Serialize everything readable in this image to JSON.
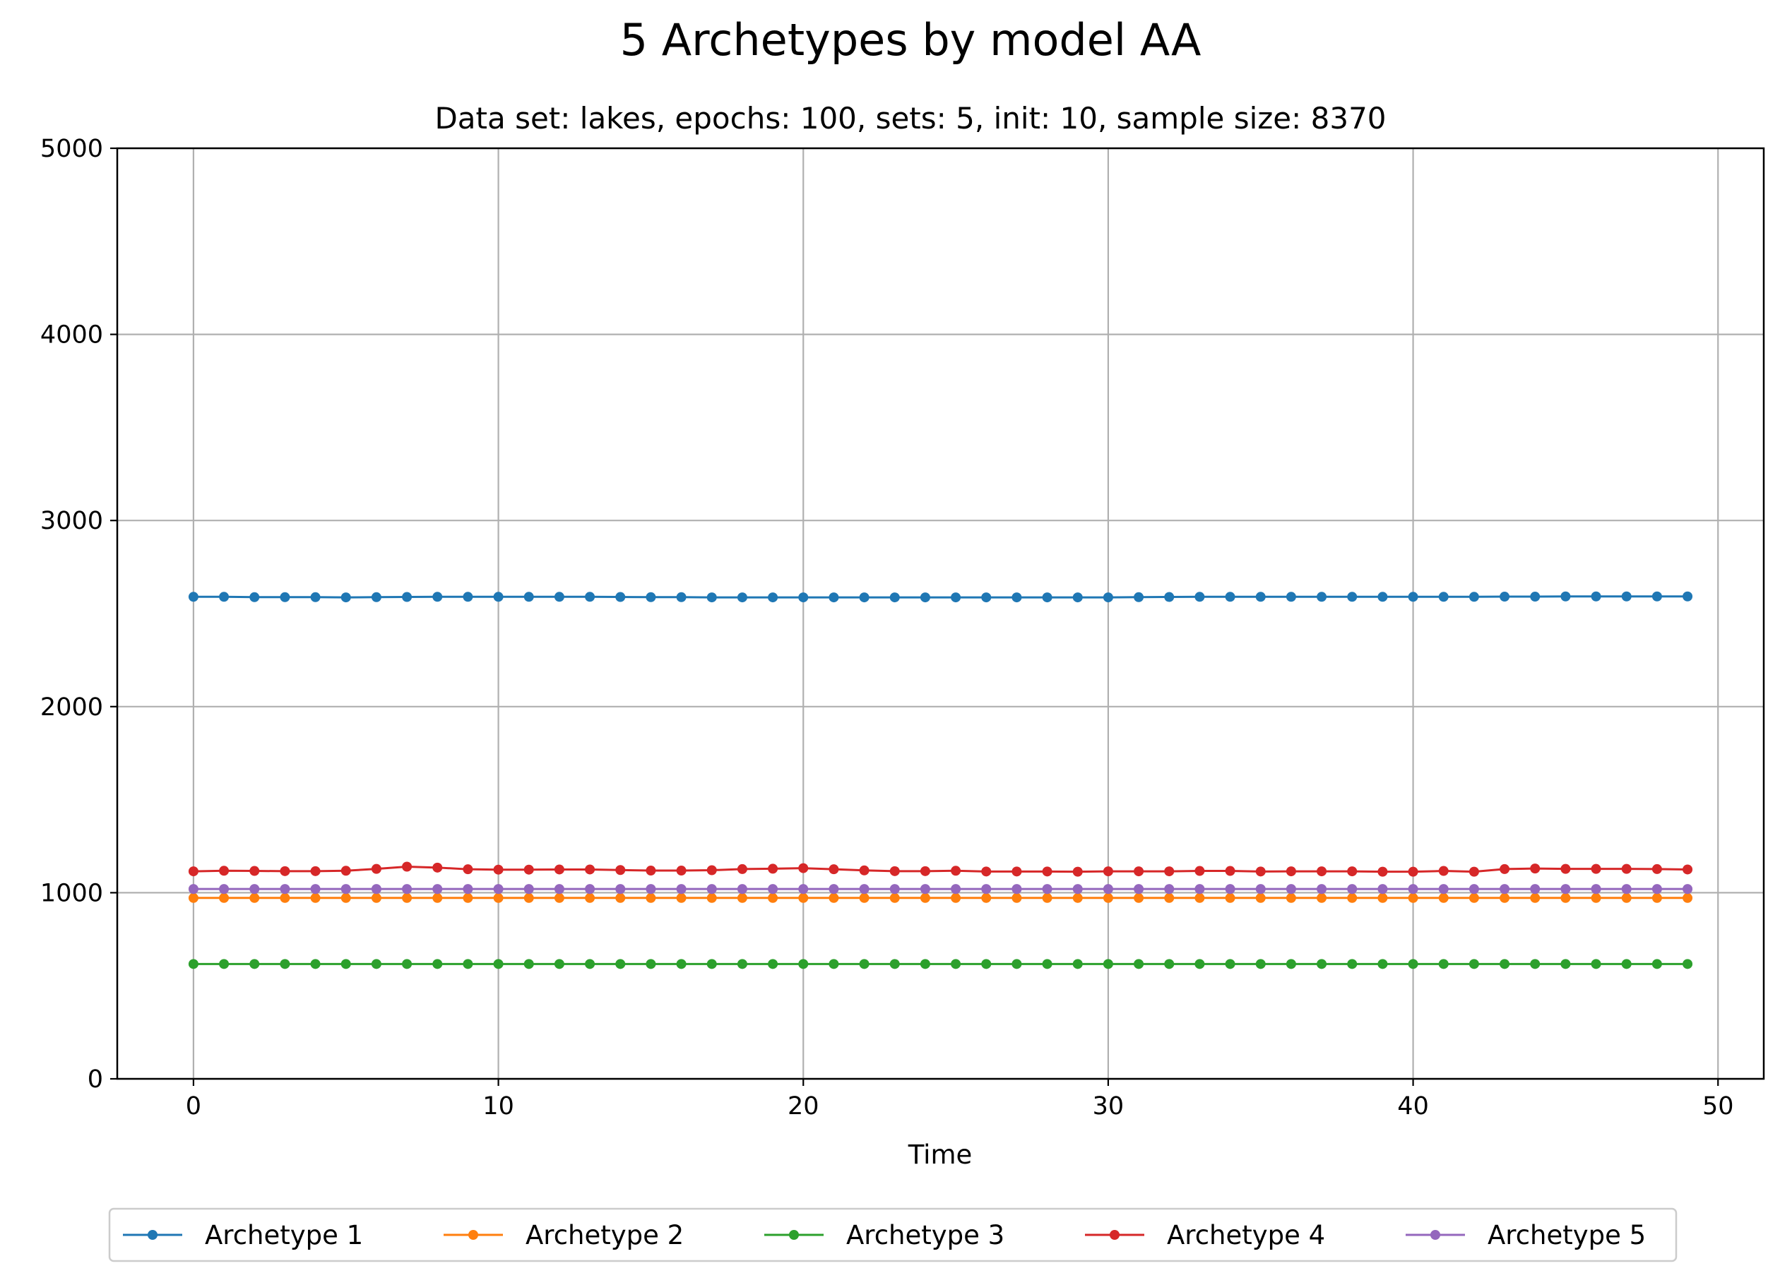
{
  "chart_data": {
    "type": "line",
    "title": "5 Archetypes by model AA",
    "subtitle": "Data set: lakes, epochs: 100, sets: 5, init: 10, sample size: 8370",
    "xlabel": "Time",
    "ylabel": "",
    "xlim": [
      -2.5,
      51.5
    ],
    "ylim": [
      0,
      5000
    ],
    "xticks": [
      0,
      10,
      20,
      30,
      40,
      50
    ],
    "yticks": [
      0,
      1000,
      2000,
      3000,
      4000,
      5000
    ],
    "grid": true,
    "legend_position": "bottom-center",
    "x": [
      0,
      1,
      2,
      3,
      4,
      5,
      6,
      7,
      8,
      9,
      10,
      11,
      12,
      13,
      14,
      15,
      16,
      17,
      18,
      19,
      20,
      21,
      22,
      23,
      24,
      25,
      26,
      27,
      28,
      29,
      30,
      31,
      32,
      33,
      34,
      35,
      36,
      37,
      38,
      39,
      40,
      41,
      42,
      43,
      44,
      45,
      46,
      47,
      48,
      49
    ],
    "series": [
      {
        "name": "Archetype 1",
        "color": "#1f77b4",
        "values": [
          2590,
          2590,
          2588,
          2588,
          2588,
          2587,
          2588,
          2589,
          2590,
          2590,
          2590,
          2590,
          2590,
          2590,
          2589,
          2588,
          2588,
          2587,
          2587,
          2587,
          2587,
          2587,
          2587,
          2587,
          2587,
          2587,
          2587,
          2587,
          2587,
          2587,
          2587,
          2588,
          2589,
          2590,
          2590,
          2590,
          2590,
          2590,
          2590,
          2590,
          2590,
          2590,
          2590,
          2591,
          2591,
          2592,
          2592,
          2592,
          2592,
          2592
        ]
      },
      {
        "name": "Archetype 2",
        "color": "#ff7f0e",
        "values": [
          972,
          972,
          972,
          972,
          972,
          972,
          972,
          972,
          972,
          972,
          972,
          972,
          972,
          972,
          972,
          972,
          972,
          972,
          972,
          972,
          972,
          972,
          972,
          972,
          972,
          972,
          972,
          972,
          972,
          972,
          972,
          972,
          972,
          972,
          972,
          972,
          972,
          972,
          972,
          972,
          972,
          972,
          972,
          972,
          972,
          972,
          972,
          972,
          972,
          972
        ]
      },
      {
        "name": "Archetype 3",
        "color": "#2ca02c",
        "values": [
          617,
          617,
          617,
          617,
          617,
          617,
          617,
          617,
          617,
          617,
          617,
          617,
          617,
          617,
          617,
          617,
          617,
          617,
          617,
          617,
          617,
          617,
          617,
          617,
          617,
          617,
          617,
          617,
          617,
          617,
          617,
          617,
          617,
          617,
          617,
          617,
          617,
          617,
          617,
          617,
          617,
          617,
          617,
          617,
          617,
          617,
          617,
          617,
          617,
          617
        ]
      },
      {
        "name": "Archetype 4",
        "color": "#d62728",
        "values": [
          1115,
          1118,
          1117,
          1116,
          1116,
          1118,
          1128,
          1140,
          1135,
          1126,
          1124,
          1124,
          1125,
          1125,
          1122,
          1119,
          1119,
          1121,
          1127,
          1129,
          1132,
          1126,
          1120,
          1116,
          1116,
          1118,
          1114,
          1114,
          1114,
          1113,
          1115,
          1115,
          1115,
          1117,
          1117,
          1114,
          1115,
          1115,
          1115,
          1113,
          1113,
          1117,
          1113,
          1127,
          1130,
          1128,
          1128,
          1128,
          1127,
          1125
        ]
      },
      {
        "name": "Archetype 5",
        "color": "#9467bd",
        "values": [
          1020,
          1020,
          1020,
          1020,
          1020,
          1020,
          1020,
          1020,
          1020,
          1020,
          1020,
          1020,
          1020,
          1020,
          1020,
          1020,
          1020,
          1020,
          1020,
          1020,
          1020,
          1020,
          1020,
          1020,
          1020,
          1020,
          1020,
          1020,
          1020,
          1020,
          1020,
          1020,
          1020,
          1020,
          1020,
          1020,
          1020,
          1020,
          1020,
          1020,
          1020,
          1020,
          1020,
          1020,
          1020,
          1020,
          1020,
          1020,
          1020,
          1020
        ]
      }
    ]
  }
}
